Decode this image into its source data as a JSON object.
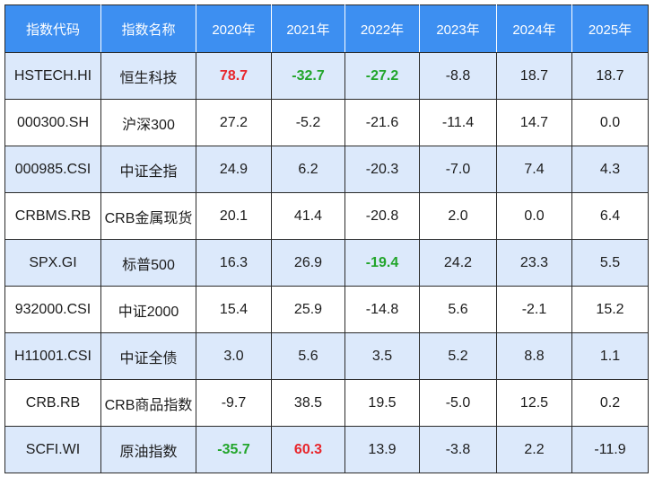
{
  "colors": {
    "header_bg": "#3d8ff1",
    "header_text": "#ffffff",
    "row_alt_bg": "#dce9fb",
    "row_bg": "#ffffff",
    "grid": "#2a2a2a",
    "highlight": {
      "red": "#e8262c",
      "green": "#22a52b"
    }
  },
  "table": {
    "headers": [
      "指数代码",
      "指数名称",
      "2020年",
      "2021年",
      "2022年",
      "2023年",
      "2024年",
      "2025年"
    ],
    "rows": [
      {
        "code": "HSTECH.HI",
        "name": "恒生科技",
        "values": [
          "78.7",
          "-32.7",
          "-27.2",
          "-8.8",
          "18.7",
          "18.7"
        ],
        "highlights": [
          "red",
          "green",
          "green",
          "",
          "",
          ""
        ]
      },
      {
        "code": "000300.SH",
        "name": "沪深300",
        "values": [
          "27.2",
          "-5.2",
          "-21.6",
          "-11.4",
          "14.7",
          "0.0"
        ],
        "highlights": [
          "",
          "",
          "",
          "",
          "",
          ""
        ]
      },
      {
        "code": "000985.CSI",
        "name": "中证全指",
        "values": [
          "24.9",
          "6.2",
          "-20.3",
          "-7.0",
          "7.4",
          "4.3"
        ],
        "highlights": [
          "",
          "",
          "",
          "",
          "",
          ""
        ]
      },
      {
        "code": "CRBMS.RB",
        "name": "CRB金属现货",
        "values": [
          "20.1",
          "41.4",
          "-20.8",
          "2.0",
          "0.0",
          "6.4"
        ],
        "highlights": [
          "",
          "",
          "",
          "",
          "",
          ""
        ]
      },
      {
        "code": "SPX.GI",
        "name": "标普500",
        "values": [
          "16.3",
          "26.9",
          "-19.4",
          "24.2",
          "23.3",
          "5.5"
        ],
        "highlights": [
          "",
          "",
          "green",
          "",
          "",
          ""
        ]
      },
      {
        "code": "932000.CSI",
        "name": "中证2000",
        "values": [
          "15.4",
          "25.9",
          "-14.8",
          "5.6",
          "-2.1",
          "15.2"
        ],
        "highlights": [
          "",
          "",
          "",
          "",
          "",
          ""
        ]
      },
      {
        "code": "H11001.CSI",
        "name": "中证全债",
        "values": [
          "3.0",
          "5.6",
          "3.5",
          "5.2",
          "8.8",
          "1.1"
        ],
        "highlights": [
          "",
          "",
          "",
          "",
          "",
          ""
        ]
      },
      {
        "code": "CRB.RB",
        "name": "CRB商品指数",
        "values": [
          "-9.7",
          "38.5",
          "19.5",
          "-5.0",
          "12.5",
          "0.2"
        ],
        "highlights": [
          "",
          "",
          "",
          "",
          "",
          ""
        ]
      },
      {
        "code": "SCFI.WI",
        "name": "原油指数",
        "values": [
          "-35.7",
          "60.3",
          "13.9",
          "-3.8",
          "2.2",
          "-11.9"
        ],
        "highlights": [
          "green",
          "red",
          "",
          "",
          "",
          ""
        ]
      }
    ]
  }
}
